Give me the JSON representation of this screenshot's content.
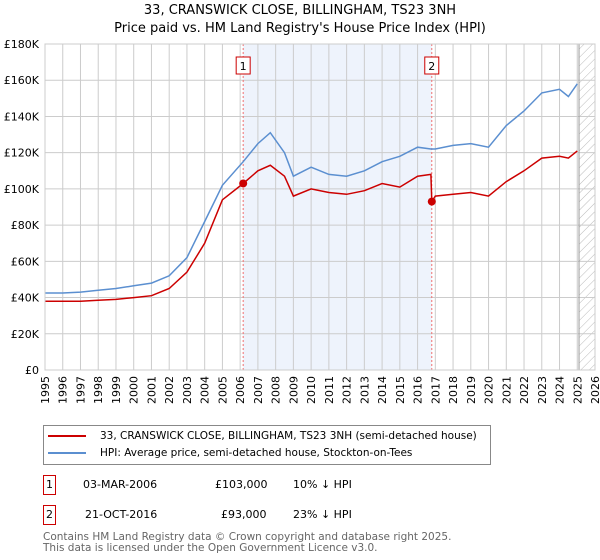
{
  "title_line1": "33, CRANSWICK CLOSE, BILLINGHAM, TS23 3NH",
  "title_line2": "Price paid vs. HM Land Registry's House Price Index (HPI)",
  "chart_data": {
    "type": "line",
    "xlim": [
      1995,
      2026
    ],
    "ylim": [
      0,
      180000
    ],
    "yticks": [
      0,
      20000,
      40000,
      60000,
      80000,
      100000,
      120000,
      140000,
      160000,
      180000
    ],
    "ytick_labels": [
      "£0",
      "£20K",
      "£40K",
      "£60K",
      "£80K",
      "£100K",
      "£120K",
      "£140K",
      "£160K",
      "£180K"
    ],
    "xticks": [
      1995,
      1996,
      1997,
      1998,
      1999,
      2000,
      2001,
      2002,
      2003,
      2004,
      2005,
      2006,
      2007,
      2008,
      2009,
      2010,
      2011,
      2012,
      2013,
      2014,
      2015,
      2016,
      2017,
      2018,
      2019,
      2020,
      2021,
      2022,
      2023,
      2024,
      2025,
      2026
    ],
    "grid": true,
    "shaded_range": [
      2006.17,
      2016.8
    ],
    "forecast_hatch_from": 2025.1,
    "series": [
      {
        "name": "33, CRANSWICK CLOSE, BILLINGHAM, TS23 3NH (semi-detached house)",
        "color": "#cc0000",
        "x": [
          1995,
          1996,
          1997,
          1998,
          1999,
          2000,
          2001,
          2002,
          2003,
          2004,
          2005,
          2006.17,
          2007,
          2007.7,
          2008.5,
          2009,
          2010,
          2011,
          2012,
          2013,
          2014,
          2015,
          2016,
          2016.75,
          2016.8,
          2017,
          2018,
          2019,
          2020,
          2021,
          2022,
          2023,
          2024,
          2024.5,
          2025
        ],
        "y": [
          38000,
          38000,
          38000,
          38500,
          39000,
          40000,
          41000,
          45000,
          54000,
          70000,
          94000,
          103000,
          110000,
          113000,
          107000,
          96000,
          100000,
          98000,
          97000,
          99000,
          103000,
          101000,
          107000,
          108000,
          93000,
          96000,
          97000,
          98000,
          96000,
          104000,
          110000,
          117000,
          118000,
          117000,
          121000
        ]
      },
      {
        "name": "HPI: Average price, semi-detached house, Stockton-on-Tees",
        "color": "#5b8fd0",
        "x": [
          1995,
          1996,
          1997,
          1998,
          1999,
          2000,
          2001,
          2002,
          2003,
          2004,
          2005,
          2006.17,
          2007,
          2007.7,
          2008.5,
          2009,
          2010,
          2011,
          2012,
          2013,
          2014,
          2015,
          2016,
          2016.75,
          2017,
          2018,
          2019,
          2020,
          2021,
          2022,
          2023,
          2024,
          2024.5,
          2025
        ],
        "y": [
          42500,
          42500,
          43000,
          44000,
          45000,
          46500,
          48000,
          52000,
          62000,
          82000,
          102000,
          115000,
          125000,
          131000,
          120000,
          107000,
          112000,
          108000,
          107000,
          110000,
          115000,
          118000,
          123000,
          122000,
          122000,
          124000,
          125000,
          123000,
          135000,
          143000,
          153000,
          155000,
          151000,
          158000
        ]
      }
    ],
    "sales": [
      {
        "label": "1",
        "x": 2006.17,
        "y": 103000
      },
      {
        "label": "2",
        "x": 2016.8,
        "y": 93000
      }
    ]
  },
  "legend": {
    "red": "33, CRANSWICK CLOSE, BILLINGHAM, TS23 3NH (semi-detached house)",
    "blue": "HPI: Average price, semi-detached house, Stockton-on-Tees"
  },
  "transactions": [
    {
      "num": "1",
      "date": "03-MAR-2006",
      "price": "£103,000",
      "delta": "10% ↓ HPI"
    },
    {
      "num": "2",
      "date": "21-OCT-2016",
      "price": "£93,000",
      "delta": "23% ↓ HPI"
    }
  ],
  "footer1": "Contains HM Land Registry data © Crown copyright and database right 2025.",
  "footer2": "This data is licensed under the Open Government Licence v3.0."
}
